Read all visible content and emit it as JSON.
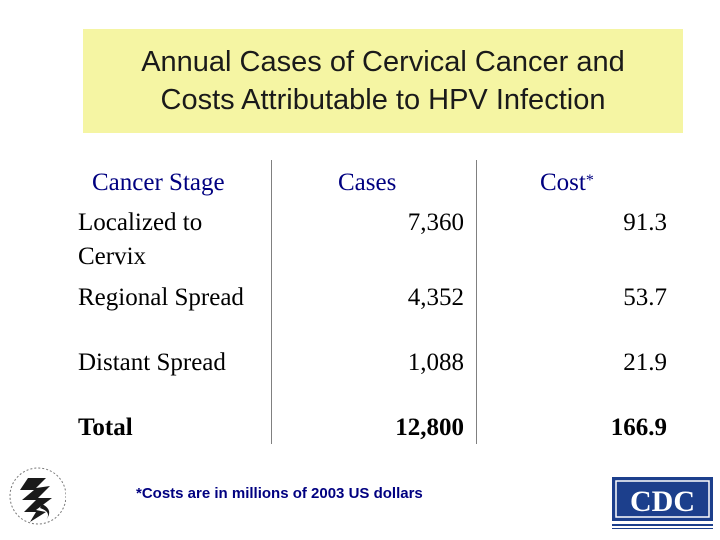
{
  "title": {
    "line1": "Annual Cases of Cervical Cancer and",
    "line2": "Costs Attributable to HPV Infection"
  },
  "table": {
    "headers": {
      "stage": "Cancer Stage",
      "cases": "Cases",
      "cost": "Cost",
      "cost_marker": "*"
    },
    "rows": [
      {
        "stage_line1": "Localized to",
        "stage_line2": "Cervix",
        "cases": "7,360",
        "cost": "91.3"
      },
      {
        "stage": "Regional Spread",
        "cases": "4,352",
        "cost": "53.7"
      },
      {
        "stage": "Distant Spread",
        "cases": "1,088",
        "cost": "21.9"
      }
    ],
    "total": {
      "stage": "Total",
      "cases": "12,800",
      "cost": "166.9"
    }
  },
  "footnote": "*Costs are in millions of 2003 US dollars",
  "logos": {
    "hhs": {
      "icon": "hhs-eagle-icon"
    },
    "cdc": {
      "icon": "cdc-logo-icon",
      "text": "CDC"
    }
  },
  "colors": {
    "title_background": "#f5f5a3",
    "header_text": "#000080",
    "cdc_blue": "#1c3f8c"
  }
}
